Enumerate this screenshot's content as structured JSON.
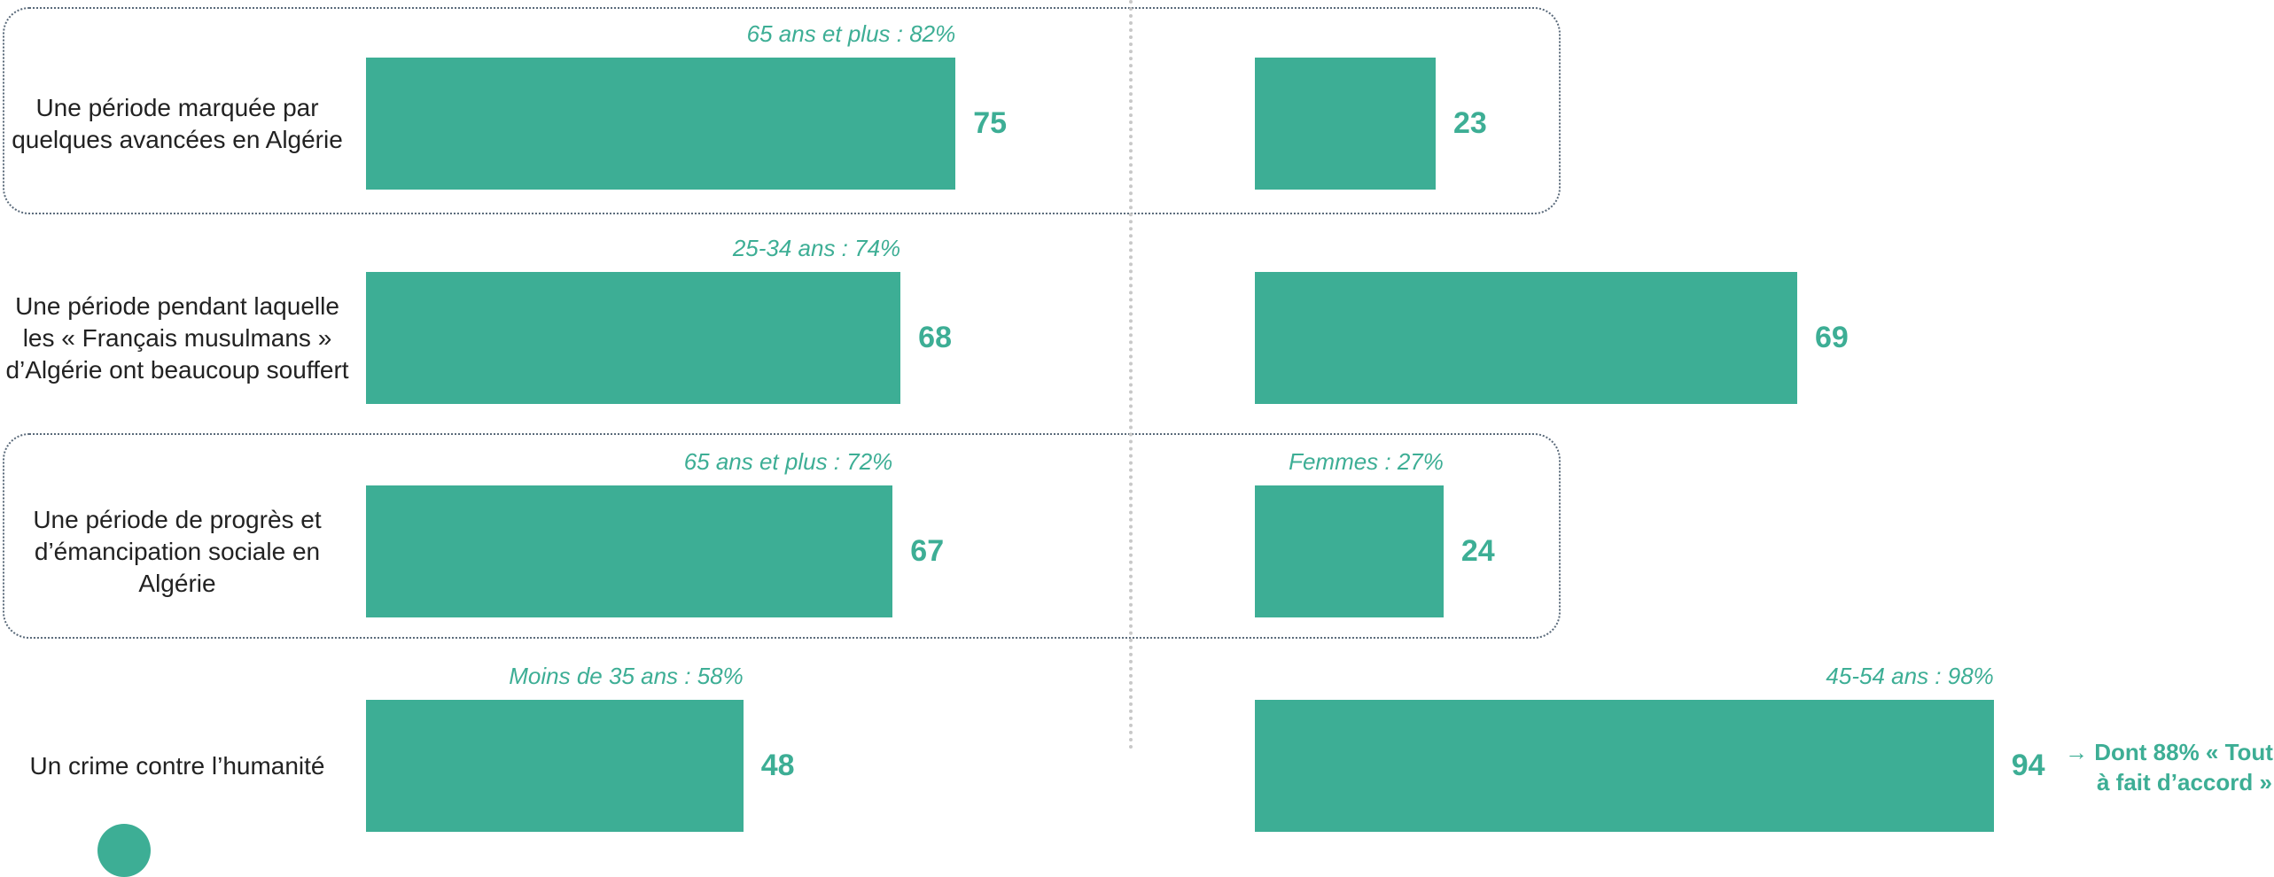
{
  "chart_data": [
    {
      "type": "bar",
      "orientation": "horizontal",
      "color": "#3dae95",
      "xlim": [
        0,
        100
      ],
      "categories": [
        "Une période marquée par quelques avancées en Algérie",
        "Une période pendant laquelle les « Français musulmans » d’Algérie ont beaucoup souffert",
        "Une période de progrès et d’émancipation sociale en Algérie",
        "Un crime contre l’humanité"
      ],
      "values": [
        75,
        68,
        67,
        48
      ],
      "annotations": [
        "65 ans et plus : 82%",
        "25-34 ans : 74%",
        "65 ans et plus : 72%",
        "Moins de 35 ans : 58%"
      ]
    },
    {
      "type": "bar",
      "orientation": "horizontal",
      "color": "#3dae95",
      "xlim": [
        0,
        100
      ],
      "values": [
        23,
        69,
        24,
        94
      ],
      "annotations": [
        null,
        null,
        "Femmes : 27%",
        "45-54 ans : 98%"
      ],
      "note": "→ Dont 88% « Tout à fait d’accord »"
    }
  ]
}
